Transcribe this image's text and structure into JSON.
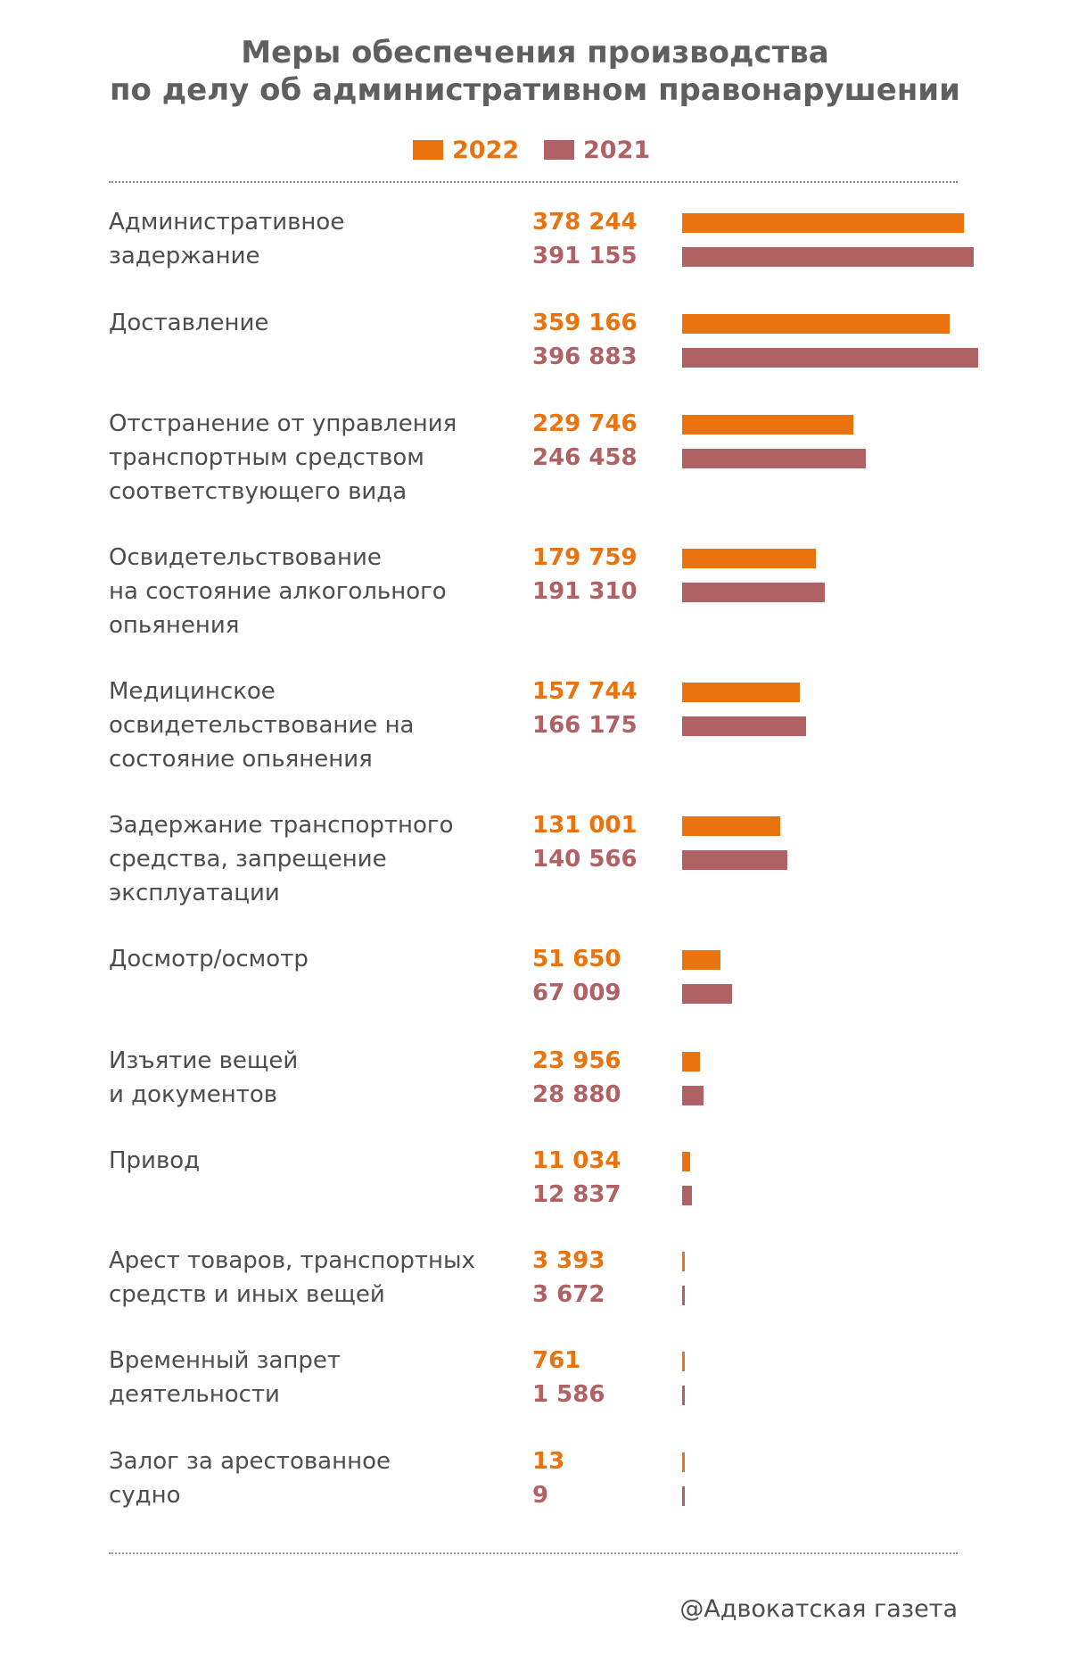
{
  "colors": {
    "y2022": "#e8730f",
    "y2021": "#b06163",
    "title": "#5f5f5f",
    "text": "#4d4d4d",
    "rule": "#8c8c8c"
  },
  "footer": "@Адвокатская газета",
  "chart_data": {
    "type": "bar",
    "orientation": "horizontal",
    "title": [
      "Меры обеспечения производства",
      "по делу об административном правонарушении"
    ],
    "legend": [
      "2022",
      "2021"
    ],
    "series": [
      {
        "name": "2022",
        "color": "#e8730f",
        "labels": [
          "378 244",
          "359 166",
          "229 746",
          "179 759",
          "157 744",
          "131 001",
          "51 650",
          "23 956",
          "11 034",
          "3 393",
          "761",
          "13"
        ],
        "values": [
          378244,
          359166,
          229746,
          179759,
          157744,
          131001,
          51650,
          23956,
          11034,
          3393,
          761,
          13
        ]
      },
      {
        "name": "2021",
        "color": "#b06163",
        "labels": [
          "391 155",
          "396 883",
          "246 458",
          "191 310",
          "166 175",
          "140 566",
          "67 009",
          "28 880",
          "12 837",
          "3 672",
          "1 586",
          "9"
        ],
        "values": [
          391155,
          396883,
          246458,
          191310,
          166175,
          140566,
          67009,
          28880,
          12837,
          3672,
          1586,
          9
        ]
      }
    ],
    "categories": [
      [
        "Административное",
        "задержание"
      ],
      [
        "Доставление"
      ],
      [
        "Отстранение от управления",
        "транспортным средством",
        "соответствующего вида"
      ],
      [
        "Освидетельствование",
        "на состояние алкогольного",
        "опьянения"
      ],
      [
        "Медицинское",
        "освидетельствование на",
        "состояние опьянения"
      ],
      [
        "Задержание транспортного",
        "средства, запрещение",
        "эксплуатации"
      ],
      [
        "Досмотр/осмотр"
      ],
      [
        "Изъятие вещей",
        "и документов"
      ],
      [
        "Привод"
      ],
      [
        "Арест товаров, транспортных",
        "средств и иных вещей"
      ],
      [
        "Временный запрет",
        "деятельности"
      ],
      [
        "Залог за арестованное",
        "судно"
      ]
    ]
  }
}
